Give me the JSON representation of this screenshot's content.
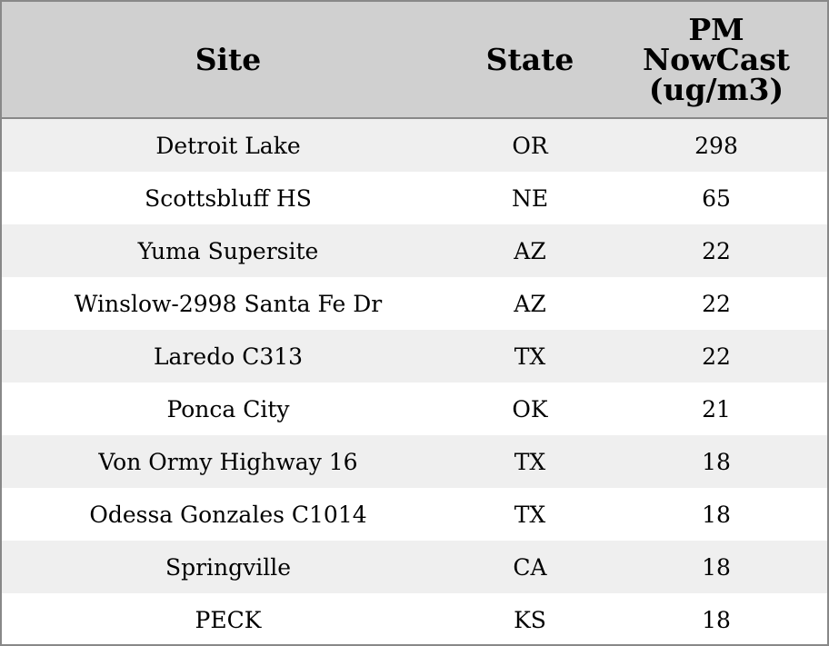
{
  "table": {
    "header": [
      "Site",
      "State",
      "PM NowCast (ug/m3)"
    ],
    "rows": [
      [
        "Detroit Lake",
        "OR",
        298
      ],
      [
        "Scottsbluff HS",
        "NE",
        65
      ],
      [
        "Yuma Supersite",
        "AZ",
        22
      ],
      [
        "Winslow-2998 Santa Fe Dr",
        "AZ",
        22
      ],
      [
        "Laredo C313",
        "TX",
        22
      ],
      [
        "Ponca City",
        "OK",
        21
      ],
      [
        "Von Ormy Highway 16",
        "TX",
        18
      ],
      [
        "Odessa Gonzales C1014",
        "TX",
        18
      ],
      [
        "Springville",
        "CA",
        18
      ],
      [
        "PECK",
        "KS",
        18
      ]
    ]
  }
}
